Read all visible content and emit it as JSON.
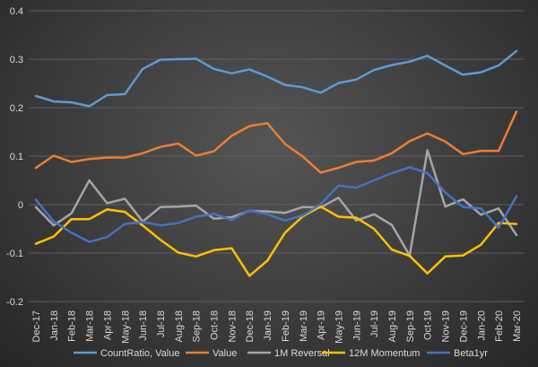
{
  "chart_data": {
    "type": "line",
    "title": "",
    "xlabel": "",
    "ylabel": "",
    "ylim": [
      -0.2,
      0.4
    ],
    "yticks": [
      "0.4",
      "0.3",
      "0.2",
      "0.1",
      "0",
      "-0.1",
      "-0.2"
    ],
    "ytick_values": [
      0.4,
      0.3,
      0.2,
      0.1,
      0,
      -0.1,
      -0.2
    ],
    "grid": true,
    "legend_position": "bottom",
    "categories": [
      "Dec-17",
      "Jan-18",
      "Feb-18",
      "Mar-18",
      "Apr-18",
      "May-18",
      "Jun-18",
      "Jul-18",
      "Aug-18",
      "Sep-18",
      "Oct-18",
      "Nov-18",
      "Dec-18",
      "Jan-19",
      "Feb-19",
      "Mar-19",
      "Apr-19",
      "May-19",
      "Jun-19",
      "Jul-19",
      "Aug-19",
      "Sep-19",
      "Oct-19",
      "Nov-19",
      "Dec-19",
      "Jan-20",
      "Feb-20",
      "Mar-20"
    ],
    "series": [
      {
        "name": "CountRatio, Value",
        "color": "#5b9bd5",
        "values": [
          0.224,
          0.213,
          0.211,
          0.203,
          0.226,
          0.228,
          0.28,
          0.299,
          0.3,
          0.301,
          0.28,
          0.271,
          0.279,
          0.264,
          0.247,
          0.242,
          0.231,
          0.251,
          0.258,
          0.278,
          0.288,
          0.295,
          0.307,
          0.287,
          0.268,
          0.273,
          0.287,
          0.317
        ]
      },
      {
        "name": "Value",
        "color": "#ed7d31",
        "values": [
          0.076,
          0.101,
          0.088,
          0.094,
          0.097,
          0.097,
          0.106,
          0.119,
          0.126,
          0.101,
          0.11,
          0.142,
          0.162,
          0.168,
          0.125,
          0.099,
          0.066,
          0.076,
          0.088,
          0.091,
          0.106,
          0.131,
          0.147,
          0.13,
          0.104,
          0.111,
          0.111,
          0.192
        ]
      },
      {
        "name": "1M Reversal",
        "color": "#a5a5a5",
        "values": [
          -0.005,
          -0.043,
          -0.018,
          0.05,
          0.003,
          0.012,
          -0.035,
          -0.005,
          -0.004,
          -0.002,
          -0.029,
          -0.026,
          -0.013,
          -0.014,
          -0.017,
          -0.005,
          -0.006,
          0.014,
          -0.033,
          -0.02,
          -0.042,
          -0.105,
          0.112,
          -0.004,
          0.011,
          -0.021,
          -0.008,
          -0.063
        ]
      },
      {
        "name": "12M Momentum",
        "color": "#ffc000",
        "values": [
          -0.081,
          -0.066,
          -0.03,
          -0.03,
          -0.01,
          -0.015,
          -0.043,
          -0.073,
          -0.099,
          -0.107,
          -0.094,
          -0.09,
          -0.147,
          -0.116,
          -0.058,
          -0.024,
          -0.004,
          -0.025,
          -0.027,
          -0.05,
          -0.093,
          -0.106,
          -0.142,
          -0.107,
          -0.105,
          -0.083,
          -0.038,
          -0.04
        ]
      },
      {
        "name": "Beta1yr",
        "color": "#4472c4",
        "values": [
          0.01,
          -0.035,
          -0.058,
          -0.077,
          -0.067,
          -0.04,
          -0.036,
          -0.043,
          -0.038,
          -0.025,
          -0.019,
          -0.032,
          -0.012,
          -0.02,
          -0.033,
          -0.022,
          0.001,
          0.039,
          0.035,
          0.05,
          0.065,
          0.077,
          0.065,
          0.025,
          -0.005,
          -0.008,
          -0.048,
          0.017
        ]
      }
    ]
  }
}
